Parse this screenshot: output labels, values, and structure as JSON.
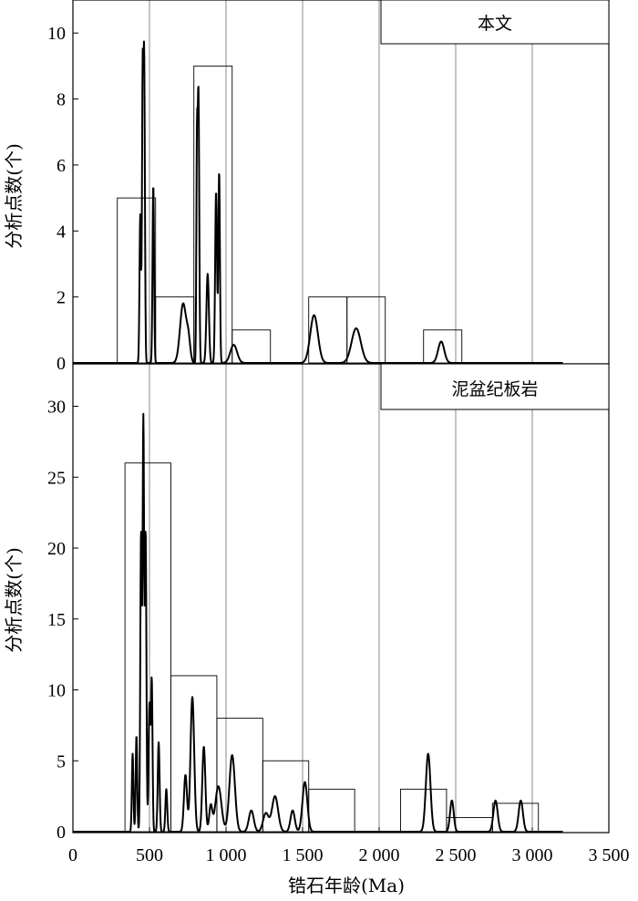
{
  "chart_data": {
    "type": "histogram-with-density",
    "xlabel": "锆石年龄(Ma)",
    "xlim": [
      0,
      3500
    ],
    "x_ticks": [
      0,
      500,
      1000,
      1500,
      2000,
      2500,
      3000,
      3500
    ],
    "x_tick_labels": [
      "0",
      "500",
      "1 000",
      "1 500",
      "2 000",
      "2 500",
      "3 000",
      "3 500"
    ],
    "panels": [
      {
        "legend": "本文",
        "ylabel": "分析点数(个)",
        "ylim": [
          0,
          11
        ],
        "y_ticks": [
          0,
          2,
          4,
          6,
          8,
          10
        ],
        "vgrid": [
          500,
          1000,
          1500,
          2000,
          2500,
          3000
        ],
        "bars": [
          {
            "x0": 290,
            "x1": 540,
            "value": 5
          },
          {
            "x0": 540,
            "x1": 790,
            "value": 2
          },
          {
            "x0": 790,
            "x1": 1040,
            "value": 9
          },
          {
            "x0": 1040,
            "x1": 1290,
            "value": 1
          },
          {
            "x0": 1540,
            "x1": 1790,
            "value": 2
          },
          {
            "x0": 1790,
            "x1": 2040,
            "value": 2
          },
          {
            "x0": 2290,
            "x1": 2540,
            "value": 1
          }
        ],
        "curve_peaks": [
          {
            "x": 440,
            "y": 4.5,
            "w": 5
          },
          {
            "x": 455,
            "y": 7.9,
            "w": 4
          },
          {
            "x": 465,
            "y": 9.3,
            "w": 5
          },
          {
            "x": 525,
            "y": 5.4,
            "w": 5
          },
          {
            "x": 720,
            "y": 1.8,
            "w": 20
          },
          {
            "x": 755,
            "y": 0.6,
            "w": 12
          },
          {
            "x": 810,
            "y": 6.2,
            "w": 4
          },
          {
            "x": 820,
            "y": 8.1,
            "w": 5
          },
          {
            "x": 880,
            "y": 2.7,
            "w": 8
          },
          {
            "x": 935,
            "y": 5.2,
            "w": 6
          },
          {
            "x": 955,
            "y": 5.8,
            "w": 5
          },
          {
            "x": 1050,
            "y": 0.55,
            "w": 22
          },
          {
            "x": 1575,
            "y": 1.45,
            "w": 25
          },
          {
            "x": 1850,
            "y": 1.05,
            "w": 30
          },
          {
            "x": 2405,
            "y": 0.65,
            "w": 20
          }
        ]
      },
      {
        "legend": "泥盆纪板岩",
        "ylabel": "分析点数(个)",
        "ylim": [
          0,
          33
        ],
        "y_ticks": [
          0,
          5,
          10,
          15,
          20,
          25,
          30
        ],
        "vgrid": [
          500,
          1000,
          1500,
          2000,
          2500,
          3000
        ],
        "bars": [
          {
            "x0": 340,
            "x1": 640,
            "value": 26
          },
          {
            "x0": 640,
            "x1": 940,
            "value": 11
          },
          {
            "x0": 940,
            "x1": 1240,
            "value": 8
          },
          {
            "x0": 1240,
            "x1": 1540,
            "value": 5
          },
          {
            "x0": 1540,
            "x1": 1840,
            "value": 3
          },
          {
            "x0": 2140,
            "x1": 2440,
            "value": 3
          },
          {
            "x0": 2440,
            "x1": 2740,
            "value": 1
          },
          {
            "x0": 2740,
            "x1": 3040,
            "value": 2
          }
        ],
        "curve_peaks": [
          {
            "x": 390,
            "y": 5.5,
            "w": 5
          },
          {
            "x": 415,
            "y": 6.8,
            "w": 5
          },
          {
            "x": 445,
            "y": 21,
            "w": 5
          },
          {
            "x": 460,
            "y": 29,
            "w": 5
          },
          {
            "x": 475,
            "y": 21,
            "w": 5
          },
          {
            "x": 500,
            "y": 9,
            "w": 6
          },
          {
            "x": 515,
            "y": 10.5,
            "w": 5
          },
          {
            "x": 560,
            "y": 6.3,
            "w": 6
          },
          {
            "x": 610,
            "y": 3,
            "w": 6
          },
          {
            "x": 735,
            "y": 4,
            "w": 10
          },
          {
            "x": 780,
            "y": 9.5,
            "w": 12
          },
          {
            "x": 855,
            "y": 6,
            "w": 10
          },
          {
            "x": 900,
            "y": 1.8,
            "w": 10
          },
          {
            "x": 950,
            "y": 3.2,
            "w": 20
          },
          {
            "x": 1040,
            "y": 5.4,
            "w": 18
          },
          {
            "x": 1165,
            "y": 1.5,
            "w": 16
          },
          {
            "x": 1260,
            "y": 1.3,
            "w": 18
          },
          {
            "x": 1320,
            "y": 2.5,
            "w": 20
          },
          {
            "x": 1435,
            "y": 1.5,
            "w": 14
          },
          {
            "x": 1515,
            "y": 3.5,
            "w": 16
          },
          {
            "x": 2320,
            "y": 5.5,
            "w": 15
          },
          {
            "x": 2475,
            "y": 2.2,
            "w": 12
          },
          {
            "x": 2760,
            "y": 2.2,
            "w": 14
          },
          {
            "x": 2925,
            "y": 2.2,
            "w": 14
          }
        ]
      }
    ]
  }
}
